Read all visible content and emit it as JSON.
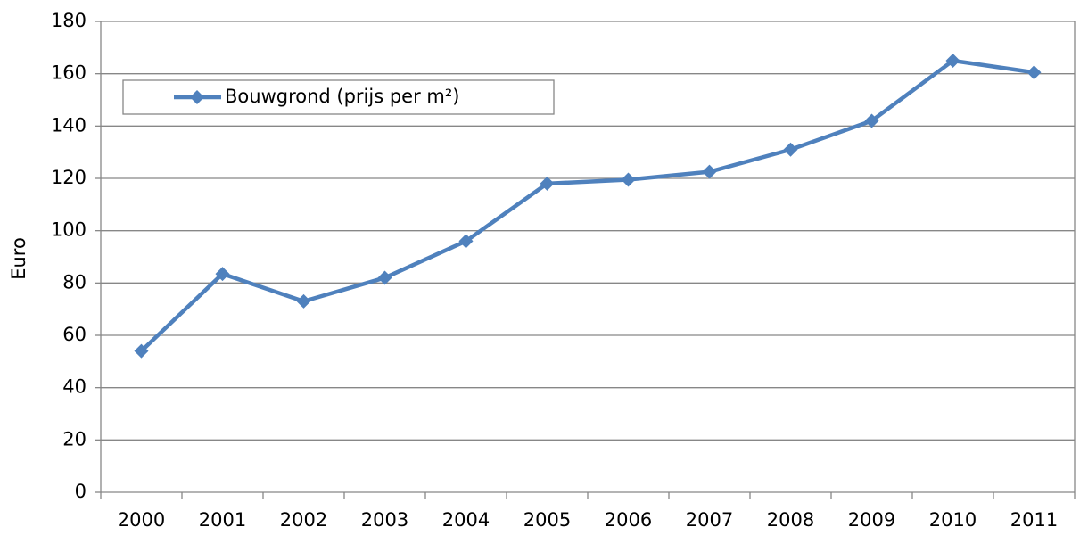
{
  "chart_data": {
    "type": "line",
    "categories": [
      "2000",
      "2001",
      "2002",
      "2003",
      "2004",
      "2005",
      "2006",
      "2007",
      "2008",
      "2009",
      "2010",
      "2011"
    ],
    "series": [
      {
        "name": "Bouwgrond (prijs per m²)",
        "color": "#4f81bd",
        "values": [
          54,
          83.5,
          73,
          82,
          96,
          118,
          119.5,
          122.5,
          131,
          142,
          165,
          160.5
        ]
      }
    ],
    "y_label": "Euro",
    "ylim": [
      0,
      180
    ],
    "yticks": [
      0,
      20,
      40,
      60,
      80,
      100,
      120,
      140,
      160,
      180
    ],
    "grid": true,
    "legend": "top-left"
  }
}
